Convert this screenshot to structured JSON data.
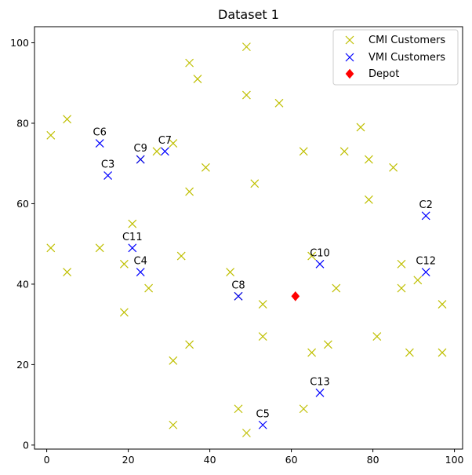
{
  "chart_data": {
    "type": "scatter",
    "title": "Dataset 1",
    "xlabel": "",
    "ylabel": "",
    "xlim": [
      -3,
      102
    ],
    "ylim": [
      -1,
      104
    ],
    "xticks": [
      0,
      20,
      40,
      60,
      80,
      100
    ],
    "yticks": [
      0,
      20,
      40,
      60,
      80,
      100
    ],
    "grid": false,
    "legend_position": "top-right",
    "series": [
      {
        "name": "CMI Customers",
        "marker": "x",
        "color": "#bfbf00",
        "points": [
          [
            1,
            77
          ],
          [
            5,
            81
          ],
          [
            1,
            49
          ],
          [
            5,
            43
          ],
          [
            13,
            49
          ],
          [
            19,
            45
          ],
          [
            19,
            33
          ],
          [
            21,
            55
          ],
          [
            23,
            71
          ],
          [
            25,
            39
          ],
          [
            27,
            73
          ],
          [
            31,
            75
          ],
          [
            31,
            21
          ],
          [
            31,
            5
          ],
          [
            33,
            47
          ],
          [
            35,
            95
          ],
          [
            35,
            63
          ],
          [
            35,
            25
          ],
          [
            37,
            91
          ],
          [
            39,
            69
          ],
          [
            45,
            43
          ],
          [
            47,
            37
          ],
          [
            47,
            9
          ],
          [
            49,
            99
          ],
          [
            49,
            87
          ],
          [
            49,
            3
          ],
          [
            51,
            65
          ],
          [
            53,
            35
          ],
          [
            53,
            27
          ],
          [
            57,
            85
          ],
          [
            63,
            73
          ],
          [
            63,
            9
          ],
          [
            65,
            47
          ],
          [
            65,
            23
          ],
          [
            69,
            25
          ],
          [
            71,
            39
          ],
          [
            73,
            73
          ],
          [
            77,
            79
          ],
          [
            79,
            71
          ],
          [
            79,
            61
          ],
          [
            81,
            27
          ],
          [
            85,
            69
          ],
          [
            87,
            45
          ],
          [
            87,
            39
          ],
          [
            89,
            23
          ],
          [
            91,
            41
          ],
          [
            97,
            35
          ],
          [
            97,
            23
          ]
        ]
      },
      {
        "name": "VMI Customers",
        "marker": "x",
        "color": "#0000ff",
        "points": [
          {
            "x": 93,
            "y": 57,
            "label": "C2"
          },
          {
            "x": 15,
            "y": 67,
            "label": "C3"
          },
          {
            "x": 23,
            "y": 43,
            "label": "C4"
          },
          {
            "x": 53,
            "y": 5,
            "label": "C5"
          },
          {
            "x": 13,
            "y": 75,
            "label": "C6"
          },
          {
            "x": 29,
            "y": 73,
            "label": "C7"
          },
          {
            "x": 47,
            "y": 37,
            "label": "C8"
          },
          {
            "x": 23,
            "y": 71,
            "label": "C9"
          },
          {
            "x": 67,
            "y": 45,
            "label": "C10"
          },
          {
            "x": 21,
            "y": 49,
            "label": "C11"
          },
          {
            "x": 93,
            "y": 43,
            "label": "C12"
          },
          {
            "x": 67,
            "y": 13,
            "label": "C13"
          }
        ]
      },
      {
        "name": "Depot",
        "marker": "diamond",
        "color": "#ff0000",
        "points": [
          [
            61,
            37
          ]
        ]
      }
    ]
  }
}
